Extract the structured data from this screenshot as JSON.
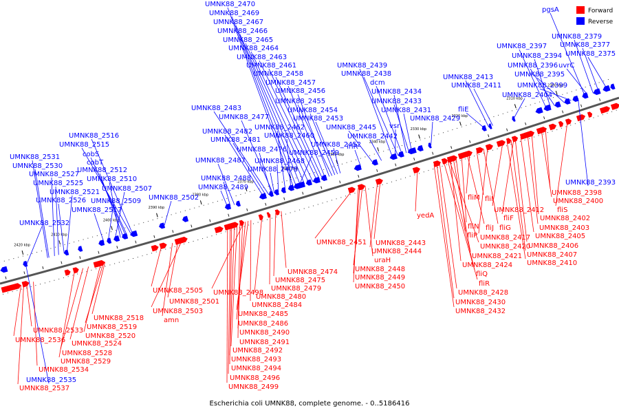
{
  "caption": "Escherichia coli UMNK88, complete genome. - 0..5186416",
  "legend": [
    {
      "label": "Forward",
      "color": "#ff0000"
    },
    {
      "label": "Reverse",
      "color": "#0000ff"
    }
  ],
  "ticks": [
    "2300 kbp",
    "2310 kbp",
    "2320 kbp",
    "2330 kbp",
    "2340 kbp",
    "2350 kbp",
    "2360 kbp",
    "2370 kbp",
    "2380 kbp",
    "2390 kbp",
    "2400 kbp",
    "2410 kbp",
    "2420 kbp"
  ],
  "reverse_labels": [
    "UMNK88_2470",
    "UMNK88_2469",
    "UMNK88_2467",
    "UMNK88_2466",
    "UMNK88_2465",
    "UMNK88_2464",
    "UMNK88_2463",
    "UMNK88_2461",
    "UMNK88_2458",
    "UMNK88_2457",
    "UMNK88_2456",
    "UMNK88_2455",
    "UMNK88_2454",
    "UMNK88_2453",
    "UMNK88_2462",
    "UMNK88_2460",
    "UMNK88_2452",
    "UMNK88_2459",
    "UMNK88_2468",
    "UMNK88_2483",
    "UMNK88_2477",
    "UMNK88_2482",
    "UMNK88_2481",
    "UMNK88_2476",
    "UMNK88_2487",
    "UMNK88_2478",
    "UMNK88_2488",
    "UMNK88_2489",
    "UMNK88_2502",
    "UMNK88_2516",
    "UMNK88_2515",
    "cobS",
    "cobT",
    "UMNK88_2512",
    "UMNK88_2510",
    "UMNK88_2507",
    "UMNK88_2509",
    "UMNK88_2517",
    "UMNK88_2531",
    "UMNK88_2530",
    "UMNK88_2527",
    "UMNK88_2525",
    "UMNK88_2521",
    "UMNK88_2526",
    "UMNK88_2532",
    "UMNK88_2535",
    "UMNK88_2439",
    "UMNK88_2438",
    "dcm",
    "UMNK88_2434",
    "UMNK88_2433",
    "UMNK88_2431",
    "vsr",
    "UMNK88_2445",
    "UMNK88_2442",
    "irlR",
    "UMNK88_2429",
    "fliE",
    "UMNK88_2413",
    "UMNK88_2411",
    "UMNK88_2404",
    "pgsA",
    "UMNK88_2379",
    "UMNK88_2377",
    "UMNK88_2375",
    "UMNK88_2397",
    "UMNK88_2394",
    "UMNK88_2396",
    "uvrC",
    "UMNK88_2395",
    "UMNK88_2399",
    "UMNK88_2393"
  ],
  "forward_labels": [
    "UMNK88_2398",
    "UMNK88_2400",
    "fliS",
    "UMNK88_2412",
    "fliF",
    "UMNK88_2402",
    "fliM",
    "fliI",
    "UMNK88_2403",
    "fliN",
    "fliJ",
    "fliG",
    "UMNK88_2405",
    "fliP",
    "UMNK88_2417",
    "UMNK88_2406",
    "UMNK88_2420",
    "UMNK88_2407",
    "UMNK88_2421",
    "UMNK88_2410",
    "UMNK88_2424",
    "fliQ",
    "fliR",
    "UMNK88_2428",
    "UMNK88_2430",
    "UMNK88_2432",
    "yedA",
    "UMNK88_2451",
    "UMNK88_2443",
    "UMNK88_2444",
    "uraH",
    "UMNK88_2448",
    "UMNK88_2449",
    "UMNK88_2450",
    "UMNK88_2474",
    "UMNK88_2475",
    "UMNK88_2479",
    "UMNK88_2480",
    "UMNK88_2498",
    "UMNK88_2484",
    "UMNK88_2485",
    "UMNK88_2486",
    "UMNK88_2490",
    "UMNK88_2491",
    "UMNK88_2492",
    "UMNK88_2493",
    "UMNK88_2494",
    "UMNK88_2496",
    "UMNK88_2499",
    "UMNK88_2505",
    "UMNK88_2501",
    "UMNK88_2503",
    "amn",
    "UMNK88_2518",
    "UMNK88_2519",
    "UMNK88_2520",
    "UMNK88_2524",
    "UMNK88_2528",
    "UMNK88_2529",
    "UMNK88_2533",
    "UMNK88_2536",
    "UMNK88_2534",
    "UMNK88_2537"
  ]
}
